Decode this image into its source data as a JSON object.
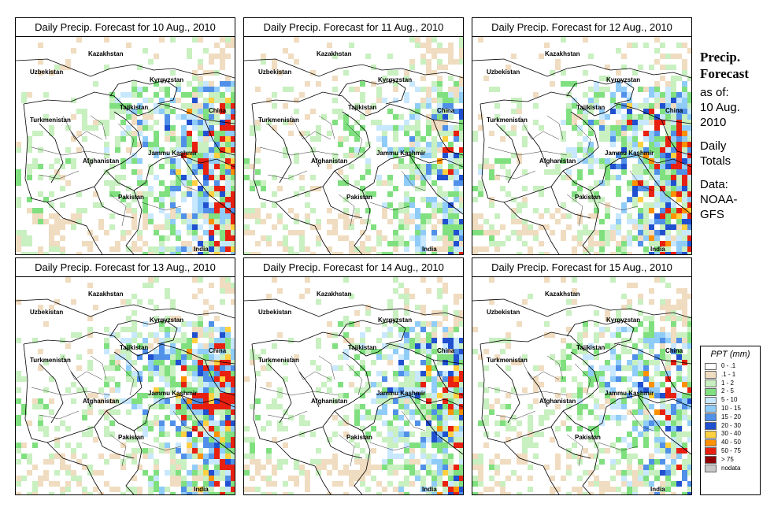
{
  "panels": [
    {
      "title": "Daily Precip. Forecast for  10 Aug., 2010",
      "seed": 11,
      "intensity": 0.9
    },
    {
      "title": "Daily Precip. Forecast for  11 Aug., 2010",
      "seed": 23,
      "intensity": 0.7
    },
    {
      "title": "Daily Precip. Forecast for  12 Aug., 2010",
      "seed": 37,
      "intensity": 1.0
    },
    {
      "title": "Daily Precip. Forecast for  13 Aug., 2010",
      "seed": 41,
      "intensity": 1.0
    },
    {
      "title": "Daily Precip. Forecast for  14 Aug., 2010",
      "seed": 53,
      "intensity": 0.85
    },
    {
      "title": "Daily Precip. Forecast for  15 Aug., 2010",
      "seed": 67,
      "intensity": 0.8
    }
  ],
  "map_labels": {
    "kazakhstan": "Kazakhstan",
    "uzbekistan": "Uzbekistan",
    "kyrgyzstan": "Kyrgyzstan",
    "tajikistan": "Tajikistan",
    "china": "China",
    "turkmenistan": "Turkmenistan",
    "afghanistan": "Afghanistan",
    "jammu_kashmir": "Jammu Kashmir",
    "pakistan": "Pakistan",
    "india": "India"
  },
  "side": {
    "title_line1": "Precip.",
    "title_line2": "Forecast",
    "asof_line1": "as of:",
    "asof_line2": "10 Aug.",
    "asof_line3": "2010",
    "daily_line1": "Daily",
    "daily_line2": "Totals",
    "data_line1": "Data:",
    "data_line2": "NOAA-",
    "data_line3": "GFS"
  },
  "legend": {
    "title": "PPT (mm)",
    "entries": [
      {
        "label": "0 - .1",
        "color": "#ffffff"
      },
      {
        "label": ".1 - 1",
        "color": "#f0dcc0"
      },
      {
        "label": "1 - 2",
        "color": "#c8f0c0"
      },
      {
        "label": "2 - 5",
        "color": "#80e080"
      },
      {
        "label": "5 - 10",
        "color": "#c8e8ff"
      },
      {
        "label": "10 - 15",
        "color": "#90ccf8"
      },
      {
        "label": "15 - 20",
        "color": "#5090e8"
      },
      {
        "label": "20 - 30",
        "color": "#2050d0"
      },
      {
        "label": "30 - 40",
        "color": "#ffd040"
      },
      {
        "label": "40 - 50",
        "color": "#ff9000"
      },
      {
        "label": "50 - 75",
        "color": "#e82010"
      },
      {
        "label": "> 75",
        "color": "#900000"
      },
      {
        "label": "nodata",
        "color": "#c8c8c8"
      }
    ]
  }
}
